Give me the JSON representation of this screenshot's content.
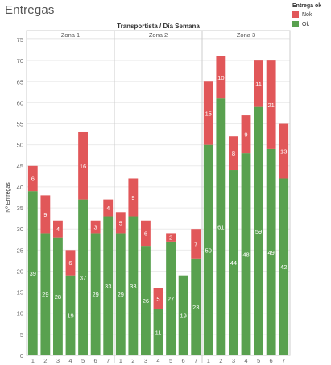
{
  "page": {
    "title": "Entregas"
  },
  "legend": {
    "title": "Entrega ok",
    "items": [
      {
        "label": "Nok",
        "color": "#e15759"
      },
      {
        "label": "Ok",
        "color": "#59a14f"
      }
    ]
  },
  "chart_data": {
    "type": "bar",
    "stacked": true,
    "title": "Transportista / Día Semana",
    "ylabel": "Nº Entregas",
    "xlabel": "",
    "ylim": [
      0,
      75
    ],
    "yticks": [
      0,
      5,
      10,
      15,
      20,
      25,
      30,
      35,
      40,
      45,
      50,
      55,
      60,
      65,
      70,
      75
    ],
    "grid": true,
    "legend_position": "top-right",
    "groups": [
      {
        "name": "Zona 1",
        "categories": [
          "1",
          "2",
          "3",
          "4",
          "5",
          "6",
          "7"
        ],
        "ok": [
          39,
          29,
          28,
          19,
          37,
          29,
          33
        ],
        "nok": [
          6,
          9,
          4,
          6,
          16,
          3,
          4
        ]
      },
      {
        "name": "Zona 2",
        "categories": [
          "1",
          "2",
          "3",
          "4",
          "5",
          "6",
          "7"
        ],
        "ok": [
          29,
          33,
          26,
          11,
          27,
          19,
          23
        ],
        "nok": [
          5,
          9,
          6,
          5,
          2,
          0,
          7
        ]
      },
      {
        "name": "Zona 3",
        "categories": [
          "1",
          "2",
          "3",
          "4",
          "5",
          "6",
          "7"
        ],
        "ok": [
          50,
          61,
          44,
          48,
          59,
          49,
          42
        ],
        "nok": [
          15,
          10,
          8,
          9,
          11,
          21,
          13
        ]
      }
    ],
    "series": [
      {
        "name": "Ok",
        "color": "#59a14f"
      },
      {
        "name": "Nok",
        "color": "#e15759"
      }
    ]
  }
}
